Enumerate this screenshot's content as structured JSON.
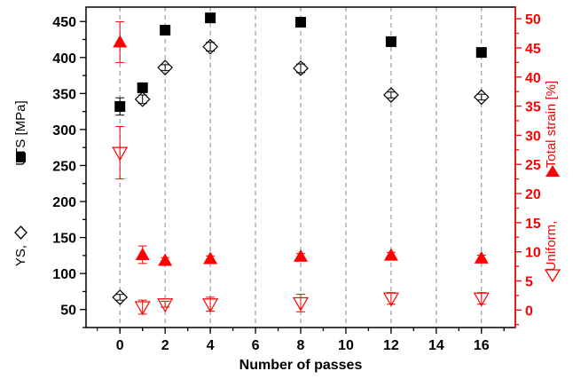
{
  "chart_data": {
    "type": "scatter",
    "xlabel": "Number of passes",
    "y_left_label": {
      "part1": "YS,",
      "part2": "UTS [MPa]"
    },
    "y_right_label": {
      "part1": "Uniform,",
      "part2": "Total strain [%]"
    },
    "x_range": [
      -1.5,
      17.5
    ],
    "y_left_range": [
      25,
      470
    ],
    "y_right_range": [
      -3,
      52
    ],
    "x_ticks": [
      0,
      2,
      4,
      6,
      8,
      10,
      12,
      14,
      16
    ],
    "y_left_ticks": [
      50,
      100,
      150,
      200,
      250,
      300,
      350,
      400,
      450
    ],
    "y_right_ticks": [
      0,
      5,
      10,
      15,
      20,
      25,
      30,
      35,
      40,
      45,
      50
    ],
    "grid": "vertical dashed at x ticks",
    "colors": {
      "left_axis": "#000000",
      "right_axis": "#ff0000",
      "grid": "#888888"
    },
    "series": [
      {
        "name": "UTS",
        "axis": "left",
        "marker": "filled-square",
        "color": "#000000",
        "x": [
          0,
          1,
          2,
          4,
          8,
          12,
          16
        ],
        "y": [
          332,
          358,
          438,
          455,
          449,
          422,
          407
        ],
        "err": [
          12,
          5,
          4,
          4,
          4,
          4,
          4
        ]
      },
      {
        "name": "YS",
        "axis": "left",
        "marker": "open-diamond",
        "color": "#000000",
        "x": [
          0,
          1,
          2,
          4,
          8,
          12,
          16
        ],
        "y": [
          67,
          342,
          386,
          415,
          385,
          348,
          345
        ],
        "err": [
          4,
          6,
          4,
          6,
          6,
          4,
          4
        ]
      },
      {
        "name": "Total strain",
        "axis": "right",
        "marker": "filled-triangle-up",
        "color": "#ff0000",
        "x": [
          0,
          1,
          2,
          4,
          8,
          12,
          16
        ],
        "y": [
          46,
          9.5,
          8.5,
          8.8,
          9.2,
          9.4,
          8.9
        ],
        "err": [
          3.5,
          1.5,
          0.5,
          0.5,
          0.5,
          0.5,
          0.5
        ]
      },
      {
        "name": "Uniform",
        "axis": "right",
        "marker": "open-triangle-down",
        "color": "#ff0000",
        "x": [
          0,
          1,
          2,
          4,
          8,
          12,
          16
        ],
        "y": [
          27,
          0.5,
          1,
          1,
          1.2,
          2,
          2
        ],
        "err": [
          4.5,
          1.2,
          0.5,
          1.2,
          1.5,
          1.0,
          1.0
        ]
      }
    ]
  }
}
